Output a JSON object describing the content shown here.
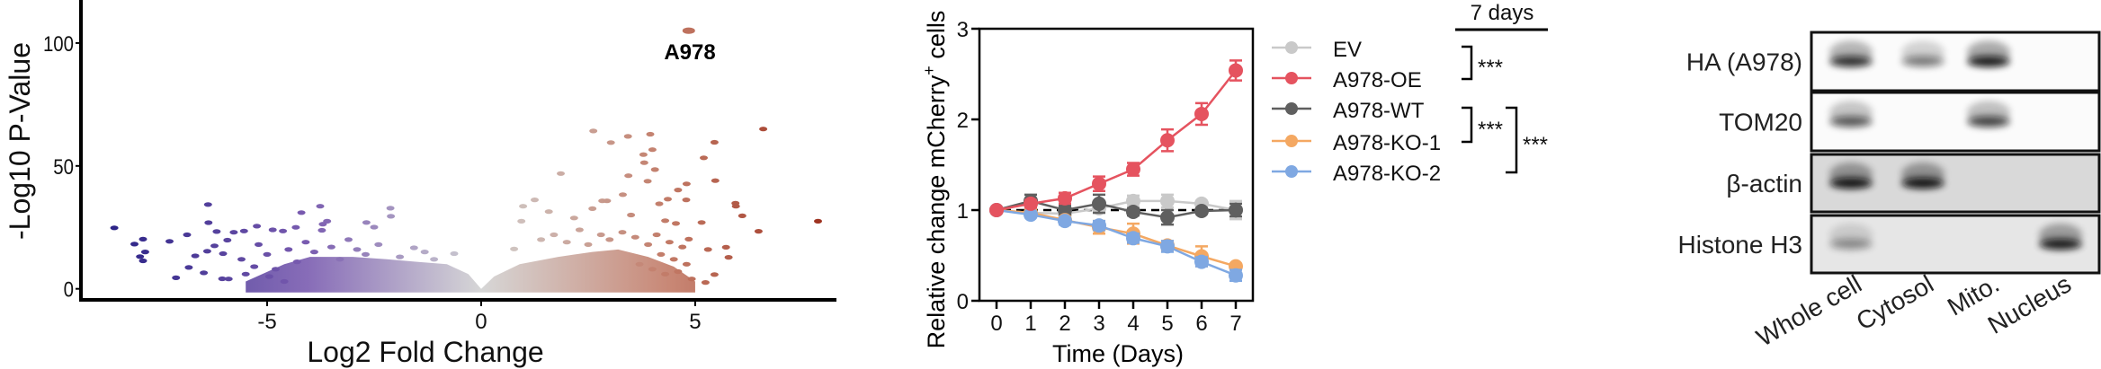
{
  "chart_data": [
    {
      "type": "scatter",
      "xlabel": "Log2 Fold Change",
      "ylabel": "-Log10 P-Value",
      "xlim": [
        -9.35,
        8.3
      ],
      "ylim": [
        -4.5,
        117.5
      ],
      "xticks": [
        "-5",
        "0",
        "5"
      ],
      "yticks": [
        "0",
        "50",
        "100"
      ],
      "grid": false,
      "colors": {
        "down_strong": "#1f1a80",
        "down": "#7a5cb0",
        "neutral": "#d2d2d2",
        "up": "#c27a66",
        "up_strong": "#9a2a18"
      },
      "annotation": {
        "label": "A978",
        "x": 4.85,
        "y": 105
      },
      "dense_region_upper_bound": [
        [
          -5.5,
          3
        ],
        [
          -4.6,
          10
        ],
        [
          -4,
          13
        ],
        [
          -3,
          13
        ],
        [
          -2.2,
          12
        ],
        [
          -1.5,
          11
        ],
        [
          -0.8,
          10
        ],
        [
          -0.3,
          6
        ],
        [
          0,
          0
        ],
        [
          0.3,
          5
        ],
        [
          0.9,
          10
        ],
        [
          1.8,
          13
        ],
        [
          2.6,
          15
        ],
        [
          3.2,
          16
        ],
        [
          3.9,
          13
        ],
        [
          4.5,
          9
        ],
        [
          5,
          3
        ]
      ],
      "points": [
        [
          -8.57,
          24.8
        ],
        [
          -8.1,
          18.2
        ],
        [
          -7.9,
          20.2
        ],
        [
          -7.97,
          13.1
        ],
        [
          -7.85,
          15
        ],
        [
          -7.9,
          11.4
        ],
        [
          -7.28,
          19.3
        ],
        [
          -7.13,
          4.5
        ],
        [
          -6.87,
          22
        ],
        [
          -6.83,
          8.7
        ],
        [
          -6.68,
          13.4
        ],
        [
          -6.48,
          6.5
        ],
        [
          -6.38,
          34.3
        ],
        [
          -6.37,
          26.9
        ],
        [
          -6.18,
          23.3
        ],
        [
          -6.4,
          15.3
        ],
        [
          -6.23,
          17.5
        ],
        [
          -6.03,
          14.3
        ],
        [
          -6.05,
          4.1
        ],
        [
          -5.93,
          19.8
        ],
        [
          -5.78,
          23
        ],
        [
          -5.54,
          23.5
        ],
        [
          -5.24,
          25.5
        ],
        [
          -4.87,
          24
        ],
        [
          -5.2,
          18
        ],
        [
          -4.63,
          23.5
        ],
        [
          -4.33,
          25
        ],
        [
          -4.2,
          31
        ],
        [
          -3.76,
          33.6
        ],
        [
          -3.6,
          27.5
        ],
        [
          -3.7,
          26.3
        ],
        [
          -3.72,
          23.8
        ],
        [
          -2.68,
          27
        ],
        [
          -2.12,
          32.8
        ],
        [
          -2.11,
          29.5
        ],
        [
          -2.5,
          25.1
        ],
        [
          -5.6,
          12
        ],
        [
          -5.3,
          9
        ],
        [
          -5.0,
          14
        ],
        [
          -4.8,
          8
        ],
        [
          -4.5,
          16
        ],
        [
          -4.3,
          11
        ],
        [
          -4.1,
          19
        ],
        [
          -3.9,
          15
        ],
        [
          -3.5,
          17
        ],
        [
          -3.3,
          12
        ],
        [
          -3.1,
          20
        ],
        [
          -2.9,
          16
        ],
        [
          -2.7,
          14
        ],
        [
          -2.4,
          18
        ],
        [
          -5.9,
          4
        ],
        [
          -5.5,
          6
        ],
        [
          -4.95,
          5
        ],
        [
          -4.6,
          3
        ],
        [
          -1.57,
          16.7
        ],
        [
          -1.32,
          15
        ],
        [
          -0.63,
          14.3
        ],
        [
          -1.9,
          13
        ],
        [
          -1.1,
          12
        ],
        [
          0.77,
          16.2
        ],
        [
          0.94,
          27.5
        ],
        [
          0.98,
          33.6
        ],
        [
          1.25,
          36.2
        ],
        [
          1.58,
          31.4
        ],
        [
          1.86,
          46.9
        ],
        [
          2.17,
          28.8
        ],
        [
          2.6,
          32.6
        ],
        [
          2.62,
          64.2
        ],
        [
          2.83,
          35.8
        ],
        [
          2.94,
          35.8
        ],
        [
          3.03,
          59.5
        ],
        [
          3.31,
          38.3
        ],
        [
          3.43,
          62
        ],
        [
          3.44,
          46
        ],
        [
          3.5,
          30
        ],
        [
          3.79,
          54.6
        ],
        [
          3.81,
          51.3
        ],
        [
          3.89,
          43.8
        ],
        [
          3.95,
          62.9
        ],
        [
          4.0,
          56.6
        ],
        [
          4.06,
          48.5
        ],
        [
          4.16,
          34.6
        ],
        [
          4.3,
          27.7
        ],
        [
          4.36,
          36.5
        ],
        [
          4.55,
          26.6
        ],
        [
          4.6,
          40.2
        ],
        [
          4.79,
          36.2
        ],
        [
          4.8,
          42.7
        ],
        [
          4.85,
          20.2
        ],
        [
          4.92,
          4
        ],
        [
          5.15,
          27
        ],
        [
          5.2,
          53.3
        ],
        [
          5.24,
          2.6
        ],
        [
          5.3,
          16
        ],
        [
          5.45,
          59.6
        ],
        [
          5.45,
          5.8
        ],
        [
          5.47,
          44
        ],
        [
          5.72,
          16.9
        ],
        [
          5.78,
          12.8
        ],
        [
          5.94,
          34.8
        ],
        [
          5.95,
          33.6
        ],
        [
          6.1,
          29.7
        ],
        [
          6.48,
          23.4
        ],
        [
          6.59,
          65
        ],
        [
          7.87,
          27.5
        ],
        [
          4.85,
          105
        ],
        [
          1.4,
          20
        ],
        [
          1.7,
          22
        ],
        [
          2.0,
          19
        ],
        [
          2.3,
          24
        ],
        [
          2.5,
          18
        ],
        [
          2.8,
          22
        ],
        [
          3.0,
          20
        ],
        [
          3.3,
          23
        ],
        [
          3.6,
          21
        ],
        [
          3.9,
          18
        ],
        [
          4.1,
          22
        ],
        [
          4.4,
          19
        ],
        [
          4.7,
          17
        ],
        [
          4.2,
          14
        ],
        [
          4.5,
          12
        ],
        [
          4.8,
          10
        ],
        [
          3.7,
          10
        ],
        [
          4.0,
          8
        ],
        [
          4.3,
          6
        ],
        [
          4.6,
          7
        ]
      ]
    },
    {
      "type": "line",
      "xlabel": "Time (Days)",
      "ylabel_main": "Relative change mCherry",
      "ylabel_sup": "+",
      "ylabel_tail": " cells",
      "xlim": [
        -0.5,
        7.5
      ],
      "ylim": [
        0,
        3
      ],
      "x": [
        0,
        1,
        2,
        3,
        4,
        5,
        6,
        7
      ],
      "xticks": [
        "0",
        "1",
        "2",
        "3",
        "4",
        "5",
        "6",
        "7"
      ],
      "yticks": [
        "0",
        "1",
        "2",
        "3"
      ],
      "reference_line": 1,
      "grid": false,
      "legend_placement": "right",
      "series": [
        {
          "name": "EV",
          "color": "#c9c9c9",
          "values": [
            1,
            0.97,
            0.96,
            1.02,
            1.1,
            1.1,
            1.07,
            1.0
          ],
          "err": [
            0,
            0.03,
            0.05,
            0.05,
            0.06,
            0.07,
            0.03,
            0.1
          ]
        },
        {
          "name": "A978-OE",
          "color": "#e5535f",
          "values": [
            1,
            1.07,
            1.13,
            1.29,
            1.45,
            1.77,
            2.06,
            2.54
          ],
          "err": [
            0,
            0.04,
            0.06,
            0.08,
            0.07,
            0.12,
            0.12,
            0.11
          ]
        },
        {
          "name": "A978-WT",
          "color": "#5f5f5f",
          "values": [
            1,
            1.1,
            1.0,
            1.07,
            0.98,
            0.92,
            0.99,
            1.0
          ],
          "err": [
            0,
            0.07,
            0.05,
            0.1,
            0.04,
            0.08,
            0.03,
            0.07
          ]
        },
        {
          "name": "A978-KO-1",
          "color": "#f4a862",
          "values": [
            1,
            0.97,
            0.89,
            0.81,
            0.74,
            0.61,
            0.49,
            0.38
          ],
          "err": [
            0,
            0.03,
            0.04,
            0.07,
            0.11,
            0.05,
            0.11,
            0.03
          ]
        },
        {
          "name": "A978-KO-2",
          "color": "#7fa8e2",
          "values": [
            1,
            0.95,
            0.88,
            0.83,
            0.69,
            0.6,
            0.43,
            0.28
          ],
          "err": [
            0,
            0.03,
            0.04,
            0.05,
            0.05,
            0.06,
            0.05,
            0.06
          ]
        }
      ],
      "significance": {
        "header": "7 days",
        "brackets": [
          {
            "from": "EV",
            "to": "A978-OE",
            "label": "***"
          },
          {
            "from": "A978-WT",
            "to": "A978-KO-1",
            "label": "***"
          },
          {
            "from": "A978-WT",
            "to": "A978-KO-2",
            "label": "***"
          }
        ]
      }
    }
  ],
  "western_blot": {
    "lanes": [
      "Whole cell",
      "Cytosol",
      "Mito.",
      "Nucleus"
    ],
    "rows": [
      {
        "label": "HA (A978)",
        "background": "#fbfbfb",
        "bands": [
          0.8,
          0.45,
          0.9,
          0
        ]
      },
      {
        "label": "TOM20",
        "background": "#fbfbfb",
        "bands": [
          0.6,
          0,
          0.7,
          0
        ]
      },
      {
        "label": "β-actin",
        "background": "#d9d9d9",
        "bands": [
          0.95,
          0.95,
          0,
          0
        ]
      },
      {
        "label": "Histone H3",
        "background": "#e6e6e6",
        "bands": [
          0.35,
          0,
          0,
          0.9
        ]
      }
    ]
  }
}
